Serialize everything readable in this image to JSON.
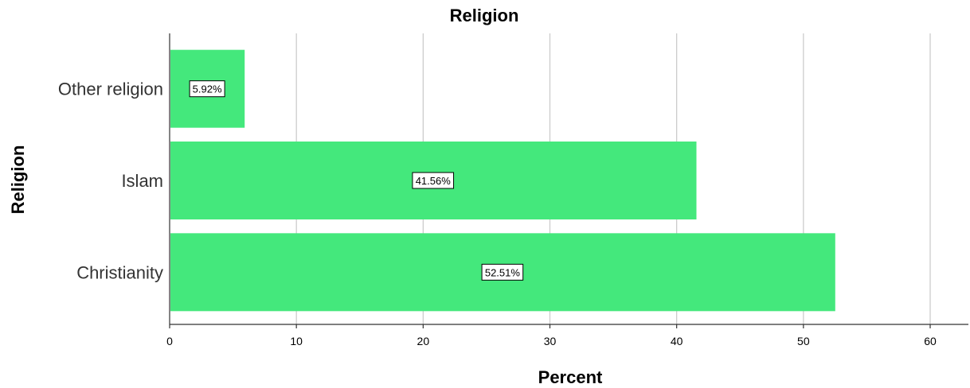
{
  "chart_data": {
    "type": "bar",
    "orientation": "horizontal",
    "title": "Religion",
    "xlabel": "Percent",
    "ylabel": "Religion",
    "categories": [
      "Other religion",
      "Islam",
      "Christianity"
    ],
    "values": [
      5.92,
      41.56,
      52.51
    ],
    "data_labels": [
      "5.92%",
      "41.56%",
      "52.51%"
    ],
    "xlim": [
      0,
      63
    ],
    "xticks": [
      0,
      10,
      20,
      30,
      40,
      50,
      60
    ],
    "grid": "vertical",
    "bar_color": "#44e87c"
  }
}
